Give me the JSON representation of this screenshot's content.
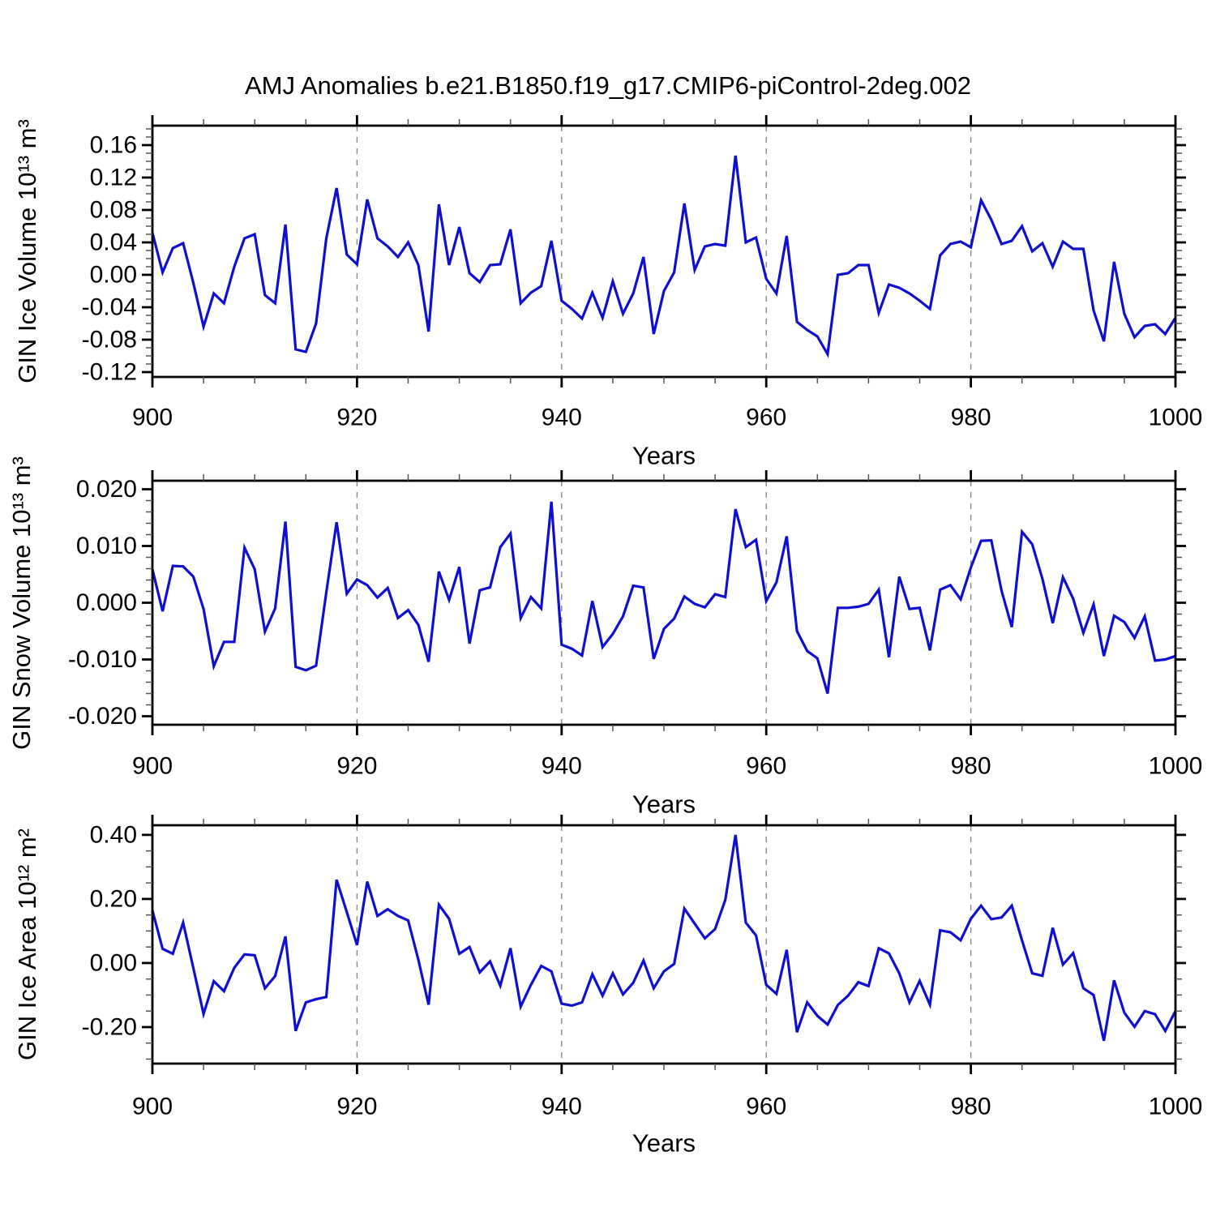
{
  "title": "AMJ Anomalies b.e21.B1850.f19_g17.CMIP6-piControl-2deg.002",
  "colors": {
    "line": "#0f0fd0",
    "grid": "#888888",
    "frame": "#000000",
    "minor_tick": "#555555",
    "text": "#000000"
  },
  "x_axis": {
    "label": "Years",
    "min": 900,
    "max": 1000,
    "major_ticks": [
      900,
      920,
      940,
      960,
      980,
      1000
    ],
    "minor_tick_step": 5,
    "dashed_gridlines": [
      920,
      940,
      960,
      980
    ]
  },
  "chart_data": [
    {
      "type": "line",
      "name": "GIN Ice Volume",
      "ylabel": "GIN Ice Volume 10¹³ m³",
      "xlabel": "Years",
      "ylim": [
        -0.126,
        0.184
      ],
      "yticks": [
        "0.16",
        "0.12",
        "0.08",
        "0.04",
        "0.00",
        "-0.04",
        "-0.08",
        "-0.12"
      ],
      "ytick_values": [
        0.16,
        0.12,
        0.08,
        0.04,
        0.0,
        -0.04,
        -0.08,
        -0.12
      ],
      "minor_y_step": 0.01,
      "x_start": 900,
      "x_step": 1,
      "values": [
        0.052,
        0.003,
        0.033,
        0.039,
        -0.01,
        -0.064,
        -0.023,
        -0.035,
        0.01,
        0.045,
        0.05,
        -0.025,
        -0.035,
        0.062,
        -0.092,
        -0.095,
        -0.06,
        0.045,
        0.107,
        0.025,
        0.013,
        0.093,
        0.045,
        0.035,
        0.022,
        0.04,
        0.012,
        -0.07,
        0.087,
        0.012,
        0.059,
        0.002,
        -0.009,
        0.012,
        0.013,
        0.056,
        -0.035,
        -0.022,
        -0.014,
        0.042,
        -0.032,
        -0.042,
        -0.054,
        -0.022,
        -0.053,
        -0.008,
        -0.048,
        -0.023,
        0.022,
        -0.073,
        -0.02,
        0.003,
        0.088,
        0.006,
        0.035,
        0.038,
        0.036,
        0.147,
        0.04,
        0.046,
        -0.005,
        -0.023,
        0.048,
        -0.058,
        -0.068,
        -0.076,
        -0.098,
        0.0,
        0.002,
        0.012,
        0.012,
        -0.047,
        -0.012,
        -0.016,
        -0.023,
        -0.032,
        -0.042,
        0.024,
        0.038,
        0.041,
        0.034,
        0.092,
        0.068,
        0.038,
        0.042,
        0.06,
        0.029,
        0.039,
        0.01,
        0.041,
        0.032,
        0.032,
        -0.044,
        -0.082,
        0.016,
        -0.048,
        -0.077,
        -0.063,
        -0.061,
        -0.073,
        -0.053
      ]
    },
    {
      "type": "line",
      "name": "GIN Snow Volume",
      "ylabel": "GIN Snow Volume 10¹³ m³",
      "xlabel": "Years",
      "ylim": [
        -0.0215,
        0.0215
      ],
      "yticks": [
        "0.020",
        "0.010",
        "0.000",
        "-0.010",
        "-0.020"
      ],
      "ytick_values": [
        0.02,
        0.01,
        0.0,
        -0.01,
        -0.02
      ],
      "minor_y_step": 0.002,
      "x_start": 900,
      "x_step": 1,
      "values": [
        0.0059,
        -0.0015,
        0.0065,
        0.0064,
        0.0046,
        -0.0011,
        -0.0112,
        -0.0069,
        -0.0069,
        0.0097,
        0.0059,
        -0.0051,
        -0.001,
        0.0143,
        -0.0113,
        -0.0119,
        -0.0111,
        0.0018,
        0.0142,
        0.0016,
        0.0041,
        0.0031,
        0.0009,
        0.0026,
        -0.0027,
        -0.0013,
        -0.0039,
        -0.0104,
        0.0055,
        0.0005,
        0.0063,
        -0.0072,
        0.0022,
        0.0027,
        0.0098,
        0.0122,
        -0.0027,
        0.001,
        -0.001,
        0.0178,
        -0.0074,
        -0.0081,
        -0.0093,
        0.0003,
        -0.0078,
        -0.0055,
        -0.0024,
        0.003,
        0.0027,
        -0.0099,
        -0.0046,
        -0.0028,
        0.0011,
        -0.0002,
        -0.0008,
        0.0015,
        0.001,
        0.0165,
        0.0098,
        0.0111,
        0.0003,
        0.0036,
        0.0117,
        -0.005,
        -0.0085,
        -0.0098,
        -0.016,
        -0.0009,
        -0.0009,
        -0.0007,
        -0.0002,
        0.0023,
        -0.0096,
        0.0046,
        -0.0011,
        -0.0009,
        -0.0084,
        0.0023,
        0.0031,
        0.0006,
        0.0062,
        0.0109,
        0.011,
        0.0021,
        -0.0043,
        0.0125,
        0.0103,
        0.0042,
        -0.0036,
        0.0045,
        0.0007,
        -0.0053,
        -0.0003,
        -0.0094,
        -0.0023,
        -0.0034,
        -0.0062,
        -0.0024,
        -0.0102,
        -0.01,
        -0.0094
      ]
    },
    {
      "type": "line",
      "name": "GIN Ice Area",
      "ylabel": "GIN Ice Area 10¹² m²",
      "xlabel": "Years",
      "ylim": [
        -0.314,
        0.43
      ],
      "yticks": [
        "0.40",
        "0.20",
        "0.00",
        "-0.20"
      ],
      "ytick_values": [
        0.4,
        0.2,
        0.0,
        -0.2
      ],
      "minor_y_step": 0.05,
      "x_start": 900,
      "x_step": 1,
      "values": [
        0.164,
        0.044,
        0.029,
        0.126,
        -0.016,
        -0.159,
        -0.057,
        -0.088,
        -0.015,
        0.027,
        0.024,
        -0.079,
        -0.041,
        0.083,
        -0.212,
        -0.123,
        -0.113,
        -0.106,
        0.26,
        0.159,
        0.056,
        0.254,
        0.147,
        0.168,
        0.147,
        0.133,
        0.01,
        -0.13,
        0.182,
        0.138,
        0.029,
        0.05,
        -0.029,
        0.005,
        -0.071,
        0.046,
        -0.136,
        -0.068,
        -0.009,
        -0.026,
        -0.127,
        -0.133,
        -0.123,
        -0.035,
        -0.102,
        -0.032,
        -0.098,
        -0.062,
        0.008,
        -0.079,
        -0.026,
        -0.003,
        0.17,
        0.123,
        0.077,
        0.106,
        0.197,
        0.4,
        0.126,
        0.086,
        -0.068,
        -0.096,
        0.041,
        -0.216,
        -0.123,
        -0.165,
        -0.192,
        -0.131,
        -0.102,
        -0.06,
        -0.072,
        0.046,
        0.03,
        -0.032,
        -0.123,
        -0.056,
        -0.13,
        0.102,
        0.096,
        0.071,
        0.138,
        0.179,
        0.137,
        0.142,
        0.179,
        0.071,
        -0.032,
        -0.04,
        0.11,
        -0.005,
        0.031,
        -0.079,
        -0.1,
        -0.243,
        -0.054,
        -0.155,
        -0.199,
        -0.15,
        -0.16,
        -0.212,
        -0.15
      ]
    }
  ]
}
